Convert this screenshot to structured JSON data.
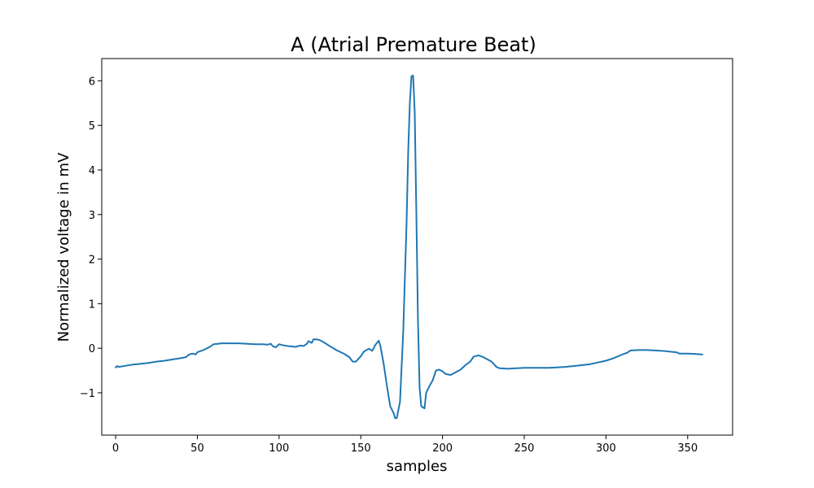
{
  "chart_data": {
    "type": "line",
    "title": "A (Atrial Premature Beat)",
    "xlabel": "samples",
    "ylabel": "Normalized voltage in mV",
    "xlim": [
      -8.5,
      377.5
    ],
    "ylim": [
      -1.95,
      6.5
    ],
    "xticks": [
      0,
      50,
      100,
      150,
      200,
      250,
      300,
      350
    ],
    "xtick_labels": [
      "0",
      "50",
      "100",
      "150",
      "200",
      "250",
      "300",
      "350"
    ],
    "yticks": [
      -1,
      0,
      1,
      2,
      3,
      4,
      5,
      6
    ],
    "ytick_labels": [
      "−1",
      "0",
      "1",
      "2",
      "3",
      "4",
      "5",
      "6"
    ],
    "grid": false,
    "line_color": "#1f77b4",
    "series": [
      {
        "x": [
          0,
          1,
          2,
          5,
          10,
          15,
          20,
          25,
          30,
          35,
          40,
          43,
          45,
          47,
          49,
          50,
          53,
          55,
          58,
          60,
          65,
          70,
          75,
          80,
          85,
          90,
          93,
          95,
          96,
          98,
          100,
          102,
          105,
          108,
          110,
          113,
          115,
          117,
          118,
          120,
          121,
          123,
          125,
          128,
          130,
          135,
          140,
          143,
          145,
          147,
          150,
          152,
          155,
          157,
          159,
          161,
          162,
          164,
          166,
          168,
          170,
          171,
          172,
          174,
          176,
          178,
          179,
          180,
          181,
          182,
          183,
          184,
          185,
          186,
          187,
          189,
          190,
          192,
          194,
          196,
          198,
          200,
          202,
          205,
          208,
          211,
          214,
          217,
          219,
          222,
          225,
          230,
          233,
          235,
          240,
          245,
          250,
          255,
          260,
          265,
          270,
          275,
          280,
          285,
          290,
          295,
          300,
          305,
          310,
          313,
          315,
          320,
          325,
          330,
          335,
          340,
          343,
          345,
          350,
          355,
          359
        ],
        "y": [
          -0.43,
          -0.4,
          -0.42,
          -0.4,
          -0.37,
          -0.35,
          -0.33,
          -0.3,
          -0.28,
          -0.25,
          -0.22,
          -0.2,
          -0.14,
          -0.12,
          -0.14,
          -0.09,
          -0.05,
          -0.02,
          0.04,
          0.09,
          0.11,
          0.11,
          0.11,
          0.1,
          0.09,
          0.09,
          0.08,
          0.1,
          0.05,
          0.02,
          0.09,
          0.07,
          0.05,
          0.04,
          0.03,
          0.06,
          0.05,
          0.1,
          0.16,
          0.12,
          0.2,
          0.2,
          0.18,
          0.12,
          0.07,
          -0.04,
          -0.13,
          -0.2,
          -0.3,
          -0.3,
          -0.18,
          -0.07,
          -0.01,
          -0.06,
          0.08,
          0.17,
          0.05,
          -0.35,
          -0.85,
          -1.3,
          -1.45,
          -1.57,
          -1.57,
          -1.2,
          0.4,
          2.8,
          4.4,
          5.5,
          6.1,
          6.12,
          5.3,
          3.0,
          0.6,
          -0.9,
          -1.3,
          -1.35,
          -1.0,
          -0.85,
          -0.72,
          -0.5,
          -0.48,
          -0.52,
          -0.58,
          -0.6,
          -0.54,
          -0.48,
          -0.38,
          -0.3,
          -0.19,
          -0.16,
          -0.2,
          -0.3,
          -0.42,
          -0.45,
          -0.46,
          -0.45,
          -0.44,
          -0.44,
          -0.44,
          -0.44,
          -0.43,
          -0.42,
          -0.4,
          -0.38,
          -0.36,
          -0.32,
          -0.28,
          -0.22,
          -0.14,
          -0.1,
          -0.05,
          -0.04,
          -0.04,
          -0.05,
          -0.06,
          -0.08,
          -0.09,
          -0.12,
          -0.12,
          -0.13,
          -0.14
        ]
      }
    ]
  }
}
